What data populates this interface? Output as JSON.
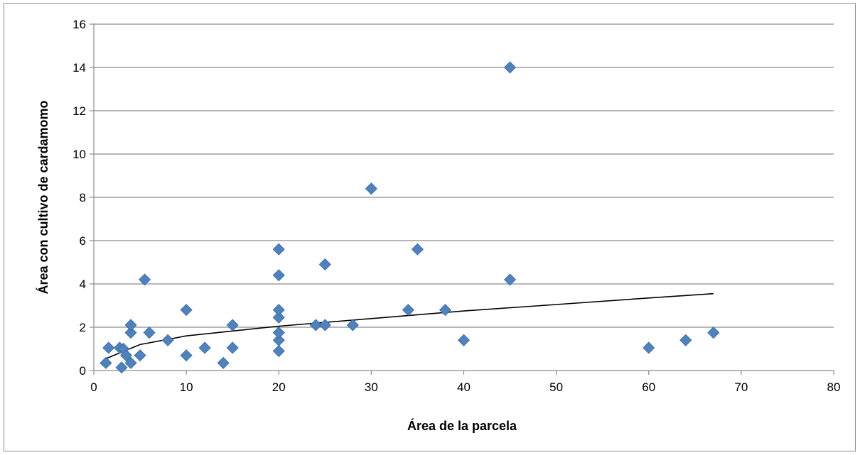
{
  "chart_data": {
    "type": "scatter",
    "title": "",
    "xlabel": "Área de la parcela",
    "ylabel": "Área con cultivo de cardamomo",
    "xlim": [
      0,
      80
    ],
    "ylim": [
      0,
      16
    ],
    "xticks": [
      0,
      10,
      20,
      30,
      40,
      50,
      60,
      70,
      80
    ],
    "yticks": [
      0,
      2,
      4,
      6,
      8,
      10,
      12,
      14,
      16
    ],
    "xtick_labels": [
      "0",
      "10",
      "20",
      "30",
      "40",
      "50",
      "60",
      "70",
      "80"
    ],
    "ytick_labels": [
      "0",
      "2",
      "4",
      "6",
      "8",
      "10",
      "12",
      "14",
      "16"
    ],
    "grid": "horizontal",
    "legend": "none",
    "marker": "diamond",
    "marker_color": "#4f81bd",
    "trendline": {
      "type": "logarithmic",
      "color": "#000000",
      "points": [
        [
          1.3,
          0.55
        ],
        [
          5,
          1.2
        ],
        [
          10,
          1.6
        ],
        [
          20,
          2.05
        ],
        [
          30,
          2.4
        ],
        [
          40,
          2.75
        ],
        [
          50,
          3.05
        ],
        [
          60,
          3.35
        ],
        [
          67,
          3.55
        ]
      ]
    },
    "series": [
      {
        "points": [
          [
            1.3,
            0.35
          ],
          [
            1.6,
            1.05
          ],
          [
            2.8,
            1.05
          ],
          [
            3.0,
            0.14
          ],
          [
            3.2,
            1.0
          ],
          [
            3.5,
            0.7
          ],
          [
            4.0,
            0.35
          ],
          [
            4.0,
            1.75
          ],
          [
            4.0,
            2.1
          ],
          [
            5.0,
            0.7
          ],
          [
            5.5,
            4.2
          ],
          [
            6.0,
            1.75
          ],
          [
            8.0,
            1.4
          ],
          [
            10.0,
            0.7
          ],
          [
            10.0,
            2.8
          ],
          [
            12.0,
            1.05
          ],
          [
            14.0,
            0.35
          ],
          [
            15.0,
            1.05
          ],
          [
            15.0,
            2.1
          ],
          [
            20.0,
            0.9
          ],
          [
            20.0,
            1.4
          ],
          [
            20.0,
            1.75
          ],
          [
            20.0,
            2.45
          ],
          [
            20.0,
            2.8
          ],
          [
            20.0,
            4.4
          ],
          [
            20.0,
            5.6
          ],
          [
            24.0,
            2.1
          ],
          [
            25.0,
            2.1
          ],
          [
            25.0,
            4.9
          ],
          [
            28.0,
            2.1
          ],
          [
            30.0,
            8.4
          ],
          [
            34.0,
            2.8
          ],
          [
            35.0,
            5.6
          ],
          [
            38.0,
            2.8
          ],
          [
            40.0,
            1.4
          ],
          [
            45.0,
            4.2
          ],
          [
            45.0,
            14.0
          ],
          [
            60.0,
            1.05
          ],
          [
            64.0,
            1.4
          ],
          [
            67.0,
            1.75
          ]
        ]
      }
    ]
  }
}
